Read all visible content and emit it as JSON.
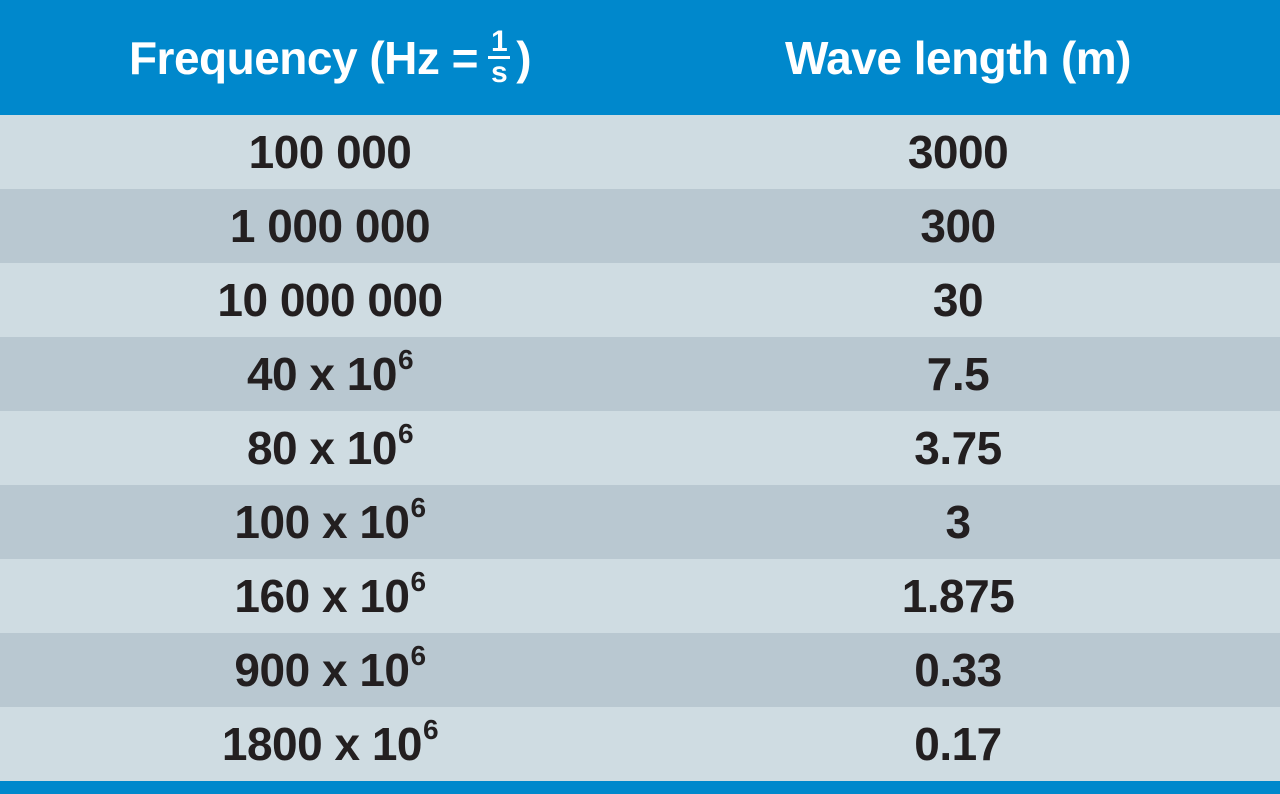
{
  "table": {
    "header": [
      {
        "text": "Frequency (Hz =",
        "fraction": {
          "num": "1",
          "den": "s"
        },
        "close": ")"
      },
      {
        "text": "Wave length (m)"
      }
    ],
    "rows": [
      [
        {
          "base": "100 000"
        },
        "3000"
      ],
      [
        {
          "base": "1 000 000"
        },
        "300"
      ],
      [
        {
          "base": "10 000 000"
        },
        "30"
      ],
      [
        {
          "base": "40 x 10",
          "exp": "6"
        },
        "7.5"
      ],
      [
        {
          "base": "80 x 10",
          "exp": "6"
        },
        "3.75"
      ],
      [
        {
          "base": "100 x 10",
          "exp": "6"
        },
        "3"
      ],
      [
        {
          "base": "160 x 10",
          "exp": "6"
        },
        "1.875"
      ],
      [
        {
          "base": "900 x 10",
          "exp": "6"
        },
        "0.33"
      ],
      [
        {
          "base": "1800 x 10",
          "exp": "6"
        },
        "0.17"
      ]
    ]
  }
}
